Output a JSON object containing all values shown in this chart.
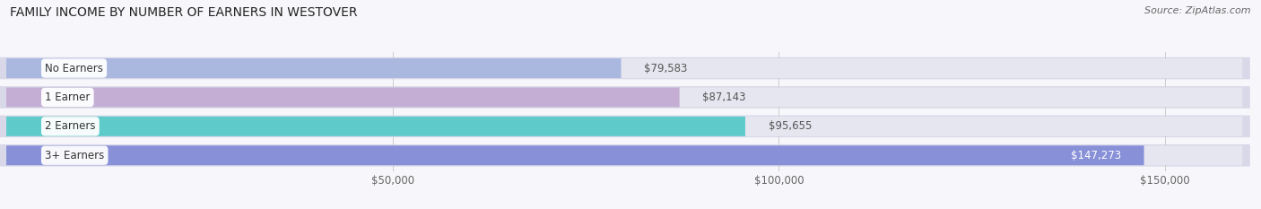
{
  "title": "FAMILY INCOME BY NUMBER OF EARNERS IN WESTOVER",
  "source": "Source: ZipAtlas.com",
  "categories": [
    "No Earners",
    "1 Earner",
    "2 Earners",
    "3+ Earners"
  ],
  "values": [
    79583,
    87143,
    95655,
    147273
  ],
  "bar_colors": [
    "#aab8e0",
    "#c4aed4",
    "#5ecbca",
    "#8890d8"
  ],
  "bar_bg_color": "#e6e6f0",
  "label_bg_colors": [
    "#aab8e0",
    "#c4aed4",
    "#5ecbca",
    "#8890d8"
  ],
  "value_labels": [
    "$79,583",
    "$87,143",
    "$95,655",
    "$147,273"
  ],
  "xlim_min": 0,
  "xlim_max": 160000,
  "xticks": [
    50000,
    100000,
    150000
  ],
  "xticklabels": [
    "$50,000",
    "$100,000",
    "$150,000"
  ],
  "label_fontsize": 8.5,
  "title_fontsize": 10,
  "source_fontsize": 8,
  "value_fontsize": 8.5,
  "background_color": "#f7f7fb",
  "bar_bg_outer": "#d8d8e8"
}
